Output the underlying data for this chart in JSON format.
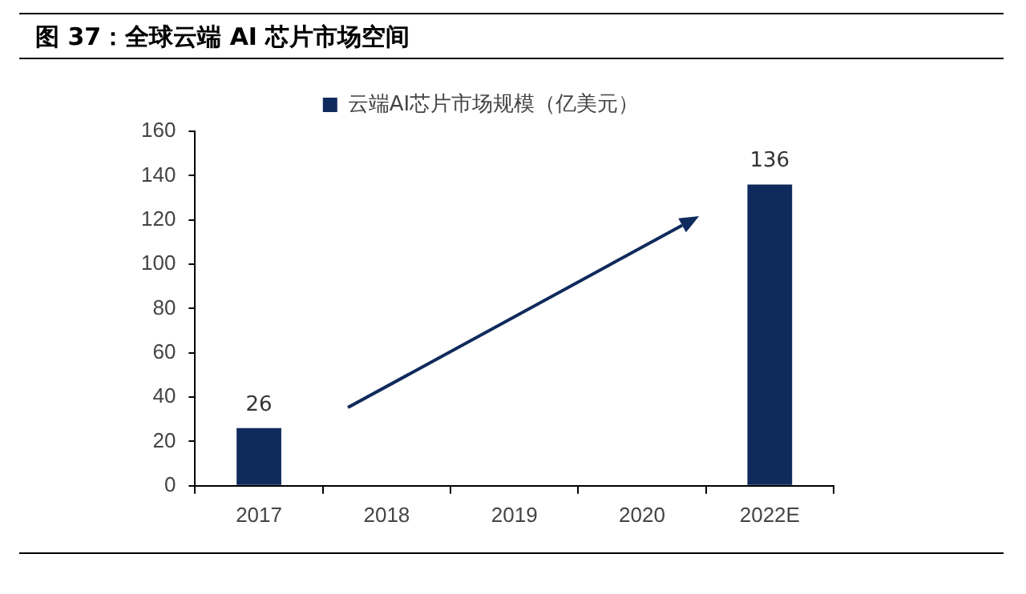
{
  "chart_data": {
    "type": "bar",
    "title": "图 37：全球云端 AI 芯片市场空间",
    "categories": [
      "2017",
      "2018",
      "2019",
      "2020",
      "2022E"
    ],
    "series": [
      {
        "name": "云端AI芯片市场规模（亿美元）",
        "color": "#0f2a5c",
        "values": [
          26,
          null,
          null,
          null,
          136
        ]
      }
    ],
    "ylim": [
      0,
      160
    ],
    "yticks": [
      0,
      20,
      40,
      60,
      80,
      100,
      120,
      140,
      160
    ],
    "grid": false,
    "legend": "top",
    "data_labels": true
  }
}
